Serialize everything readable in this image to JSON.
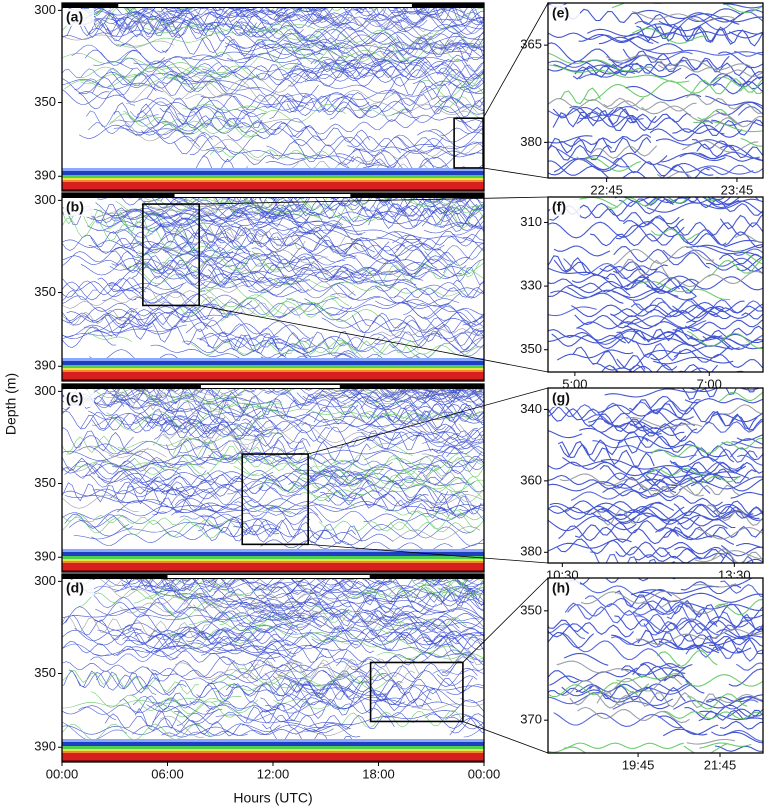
{
  "ylabel": "Depth (m)",
  "xlabel": "Hours (UTC)",
  "chart_data": [
    {
      "type": "echogram",
      "label": "(a)",
      "xlim": [
        0,
        24
      ],
      "ylim": [
        296,
        398
      ],
      "yticks": [
        300,
        350,
        390
      ],
      "daylight": [
        3.2,
        19.9
      ]
    },
    {
      "type": "echogram",
      "label": "(b)",
      "xlim": [
        0,
        24
      ],
      "ylim": [
        296,
        398
      ],
      "yticks": [
        300,
        350,
        390
      ],
      "daylight": [
        6.4,
        16.4
      ]
    },
    {
      "type": "echogram",
      "label": "(c)",
      "xlim": [
        0,
        24
      ],
      "ylim": [
        296,
        398
      ],
      "yticks": [
        300,
        350,
        390
      ],
      "daylight": [
        7.9,
        15.8
      ]
    },
    {
      "type": "echogram",
      "label": "(d)",
      "xlim": [
        0,
        24
      ],
      "ylim": [
        296,
        398
      ],
      "yticks": [
        300,
        350,
        390
      ],
      "daylight": [
        6.0,
        17.5
      ],
      "xticks": [
        {
          "value": 0,
          "label": "00:00"
        },
        {
          "value": 6,
          "label": "06:00"
        },
        {
          "value": 12,
          "label": "12:00"
        },
        {
          "value": 18,
          "label": "18:00"
        },
        {
          "value": 24,
          "label": "00:00"
        }
      ]
    },
    {
      "type": "echogram",
      "label": "(e)",
      "xlim": [
        22.3,
        23.95
      ],
      "ylim": [
        358.5,
        385.5
      ],
      "yticks": [
        365,
        380
      ],
      "xticks": [
        {
          "value": 22.75,
          "label": "22:45"
        },
        {
          "value": 23.75,
          "label": "23:45"
        }
      ]
    },
    {
      "type": "echogram",
      "label": "(f)",
      "xlim": [
        4.6,
        7.8
      ],
      "ylim": [
        302,
        357
      ],
      "yticks": [
        310,
        330,
        350
      ],
      "xticks": [
        {
          "value": 5,
          "label": "5:00"
        },
        {
          "value": 7,
          "label": "7:00"
        }
      ]
    },
    {
      "type": "echogram",
      "label": "(g)",
      "xlim": [
        10.25,
        14
      ],
      "ylim": [
        334,
        383
      ],
      "yticks": [
        340,
        360,
        380
      ],
      "xticks": [
        {
          "value": 10.5,
          "label": "10:30"
        },
        {
          "value": 13.5,
          "label": "13:30"
        }
      ]
    },
    {
      "type": "echogram",
      "label": "(h)",
      "xlim": [
        17.55,
        22.8
      ],
      "ylim": [
        344,
        376
      ],
      "yticks": [
        350,
        370
      ],
      "xticks": [
        {
          "value": 19.75,
          "label": "19:45"
        },
        {
          "value": 21.75,
          "label": "21:45"
        }
      ]
    }
  ]
}
